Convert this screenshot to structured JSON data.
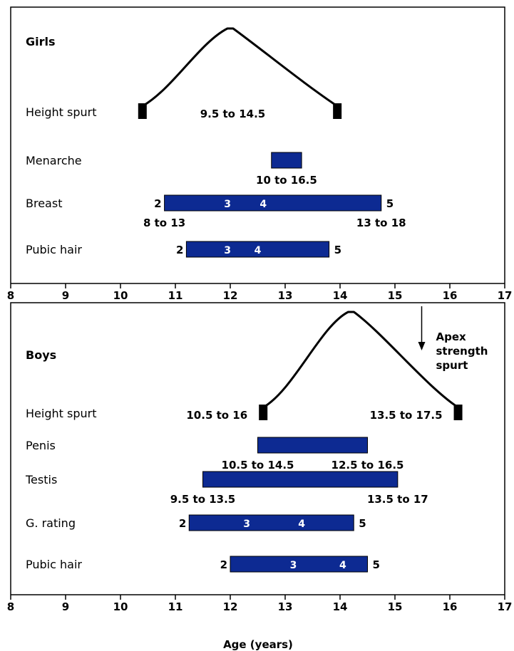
{
  "axis": {
    "ticks": [
      8,
      9,
      10,
      11,
      12,
      13,
      14,
      15,
      16,
      17
    ],
    "label": "Age (years)",
    "min": 8,
    "max": 17
  },
  "panels": [
    {
      "title": "Girls",
      "rows": [
        {
          "label": "Height spurt",
          "type": "spurt",
          "start": 10.4,
          "peak": 12.0,
          "end": 13.95,
          "ranges": [
            {
              "text": "9.5 to 14.5",
              "pos": "center"
            }
          ]
        },
        {
          "label": "Menarche",
          "type": "bar",
          "start": 12.75,
          "end": 13.3,
          "ranges": [
            {
              "text": "10 to 16.5",
              "pos": "center"
            }
          ]
        },
        {
          "label": "Breast",
          "type": "bar",
          "start": 10.8,
          "end": 14.75,
          "start_stage": "2",
          "end_stage": "5",
          "mid_stages": [
            {
              "label": "3",
              "at": 11.95
            },
            {
              "label": "4",
              "at": 12.6
            }
          ],
          "ranges": [
            {
              "text": "8 to 13",
              "pos": "start"
            },
            {
              "text": "13 to 18",
              "pos": "end"
            }
          ]
        },
        {
          "label": "Pubic hair",
          "type": "bar",
          "start": 11.2,
          "end": 13.8,
          "start_stage": "2",
          "end_stage": "5",
          "mid_stages": [
            {
              "label": "3",
              "at": 11.95
            },
            {
              "label": "4",
              "at": 12.5
            }
          ],
          "ranges": []
        }
      ]
    },
    {
      "title": "Boys",
      "annotation": {
        "lines": [
          "Apex",
          "strength",
          "spurt"
        ],
        "at": 15.5
      },
      "rows": [
        {
          "label": "Height spurt",
          "type": "spurt",
          "start": 12.6,
          "peak": 14.2,
          "end": 16.15,
          "ranges": [
            {
              "text": "10.5 to 16",
              "pos": "left"
            },
            {
              "text": "13.5 to 17.5",
              "pos": "right"
            }
          ]
        },
        {
          "label": "Penis",
          "type": "bar",
          "start": 12.5,
          "end": 14.5,
          "ranges": [
            {
              "text": "10.5 to 14.5",
              "pos": "start"
            },
            {
              "text": "12.5 to 16.5",
              "pos": "end"
            }
          ]
        },
        {
          "label": "Testis",
          "type": "bar",
          "start": 11.5,
          "end": 15.05,
          "ranges": [
            {
              "text": "9.5 to 13.5",
              "pos": "start"
            },
            {
              "text": "13.5 to 17",
              "pos": "end"
            }
          ]
        },
        {
          "label": "G. rating",
          "type": "bar",
          "start": 11.25,
          "end": 14.25,
          "start_stage": "2",
          "end_stage": "5",
          "mid_stages": [
            {
              "label": "3",
              "at": 12.3
            },
            {
              "label": "4",
              "at": 13.3
            }
          ],
          "ranges": []
        },
        {
          "label": "Pubic hair",
          "type": "bar",
          "start": 12.0,
          "end": 14.5,
          "start_stage": "2",
          "end_stage": "5",
          "mid_stages": [
            {
              "label": "3",
              "at": 13.15
            },
            {
              "label": "4",
              "at": 14.05
            }
          ],
          "ranges": []
        }
      ]
    }
  ]
}
